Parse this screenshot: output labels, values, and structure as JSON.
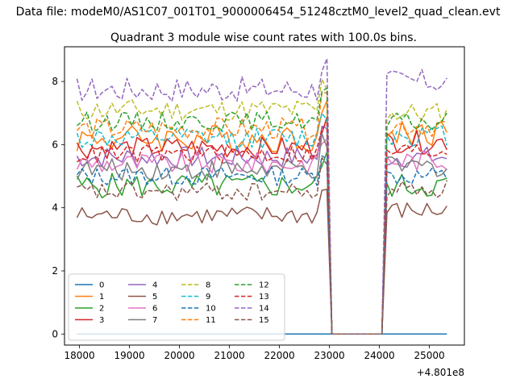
{
  "figure": {
    "suptitle": "Data file: modeM0/AS1C07_001T01_9000006454_51248cztM0_level2_quad_clean.evt"
  },
  "chart_data": {
    "type": "line",
    "title": "Quadrant 3 module wise count rates with 100.0s bins.",
    "xlabel": "",
    "ylabel": "",
    "offset_text": "+4.801e8",
    "xlim": [
      17700,
      25700
    ],
    "ylim": [
      -0.35,
      9.1
    ],
    "xticks": [
      "18000",
      "19000",
      "20000",
      "21000",
      "22000",
      "23000",
      "24000",
      "25000"
    ],
    "yticks": [
      "0",
      "2",
      "4",
      "6",
      "8"
    ],
    "grid": false,
    "legend_location": "lower left",
    "legend_ncol": 4,
    "series": [
      {
        "name": "0",
        "color": "#1f77b4",
        "linestyle": "solid",
        "base": 0.0,
        "gap": 0.0,
        "amp": 0.0
      },
      {
        "name": "1",
        "color": "#ff7f0e",
        "linestyle": "solid",
        "base": 6.2,
        "gap": 6.4,
        "amp": 0.45
      },
      {
        "name": "2",
        "color": "#2ca02c",
        "linestyle": "solid",
        "base": 4.7,
        "gap": 4.7,
        "amp": 0.4
      },
      {
        "name": "3",
        "color": "#d62728",
        "linestyle": "solid",
        "base": 5.9,
        "gap": 6.1,
        "amp": 0.35
      },
      {
        "name": "4",
        "color": "#9467bd",
        "linestyle": "solid",
        "base": 5.6,
        "gap": 5.6,
        "amp": 0.35
      },
      {
        "name": "5",
        "color": "#8c564b",
        "linestyle": "solid",
        "base": 3.75,
        "gap": 3.9,
        "amp": 0.3
      },
      {
        "name": "6",
        "color": "#e377c2",
        "linestyle": "solid",
        "base": 5.4,
        "gap": 5.5,
        "amp": 0.35
      },
      {
        "name": "7",
        "color": "#7f7f7f",
        "linestyle": "solid",
        "base": 5.2,
        "gap": 5.3,
        "amp": 0.35
      },
      {
        "name": "8",
        "color": "#bcbd22",
        "linestyle": "dashed",
        "base": 7.1,
        "gap": 7.0,
        "amp": 0.35
      },
      {
        "name": "9",
        "color": "#17becf",
        "linestyle": "dashed",
        "base": 6.2,
        "gap": 6.3,
        "amp": 0.35
      },
      {
        "name": "10",
        "color": "#1f77b4",
        "linestyle": "dashed",
        "base": 5.0,
        "gap": 5.0,
        "amp": 0.3
      },
      {
        "name": "11",
        "color": "#ff7f0e",
        "linestyle": "dashed",
        "base": 6.5,
        "gap": 6.6,
        "amp": 0.35
      },
      {
        "name": "12",
        "color": "#2ca02c",
        "linestyle": "dashed",
        "base": 6.75,
        "gap": 6.7,
        "amp": 0.3
      },
      {
        "name": "13",
        "color": "#d62728",
        "linestyle": "dashed",
        "base": 5.7,
        "gap": 5.8,
        "amp": 0.3
      },
      {
        "name": "14",
        "color": "#9467bd",
        "linestyle": "dashed",
        "base": 7.75,
        "gap": 8.0,
        "amp": 0.4
      },
      {
        "name": "15",
        "color": "#8c564b",
        "linestyle": "dashed",
        "base": 4.5,
        "gap": 4.6,
        "amp": 0.3
      }
    ],
    "time_segments": {
      "t_start": 17950,
      "bin": 100,
      "first_end": 22950,
      "zero_start": 23000,
      "zero_end": 24050,
      "second_start": 24100,
      "t_end": 25350
    }
  }
}
